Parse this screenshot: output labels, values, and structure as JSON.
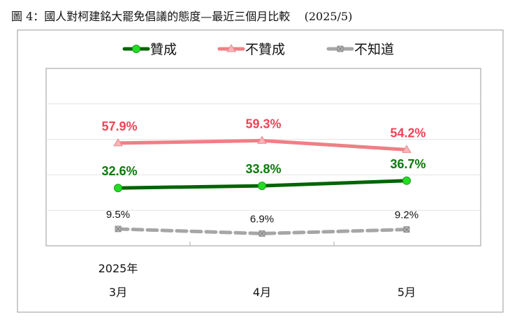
{
  "title": "圖 4：國人對柯建銘大罷免倡議的態度—最近三個月比較    (2025/5)",
  "chart_data": {
    "type": "line",
    "categories": [
      "3月",
      "4月",
      "5月"
    ],
    "category_group_label": "2025年",
    "ylim": [
      0,
      100
    ],
    "y_gridlines": [
      20,
      40,
      60,
      80
    ],
    "grid": true,
    "legend_placement": "top",
    "series": [
      {
        "name": "贊成",
        "values": [
          32.6,
          33.8,
          36.7
        ],
        "labels": [
          "32.6%",
          "33.8%",
          "36.7%"
        ],
        "color": "#006400",
        "marker": "circle",
        "marker_color": "#22dd22",
        "label_color": "#0a7a0a",
        "dashed": false
      },
      {
        "name": "不贊成",
        "values": [
          57.9,
          59.3,
          54.2
        ],
        "labels": [
          "57.9%",
          "59.3%",
          "54.2%"
        ],
        "color": "#f07f86",
        "marker": "triangle",
        "marker_color": "#f7b5b8",
        "label_color": "#ee4455",
        "dashed": false
      },
      {
        "name": "不知道",
        "values": [
          9.5,
          6.9,
          9.2
        ],
        "labels": [
          "9.5%",
          "6.9%",
          "9.2%"
        ],
        "color": "#a6a6a6",
        "marker": "x-square",
        "marker_color": "#999999",
        "label_color": "#111111",
        "dashed": true
      }
    ]
  }
}
